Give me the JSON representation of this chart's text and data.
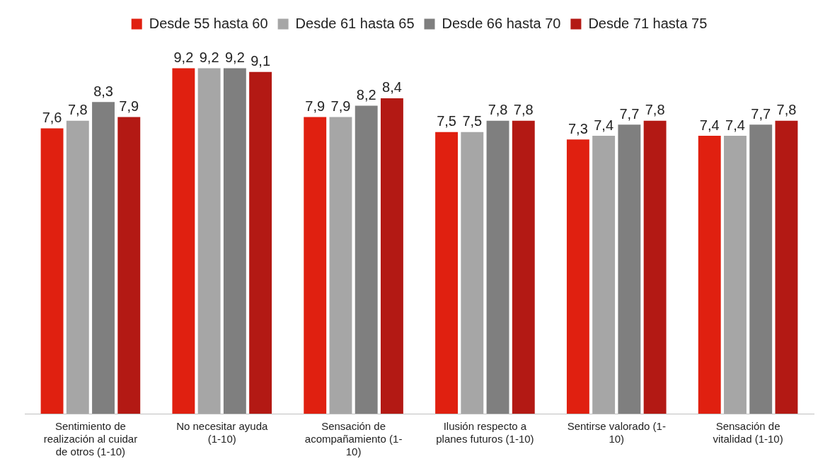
{
  "chart_data": {
    "type": "bar",
    "categories": [
      "Sentimiento de realización al cuidar de otros (1-10)",
      "No necesitar ayuda (1-10)",
      "Sensación de acompañamiento (1-10)",
      "Ilusión respecto a planes futuros (1-10)",
      "Sentirse valorado (1-10)",
      "Sensación de vitalidad (1-10)"
    ],
    "series": [
      {
        "name": "Desde 55 hasta 60",
        "color": "#e02010",
        "values": [
          7.6,
          9.2,
          7.9,
          7.5,
          7.3,
          7.4
        ],
        "value_labels": [
          "7,6",
          "9,2",
          "7,9",
          "7,5",
          "7,3",
          "7,4"
        ]
      },
      {
        "name": "Desde 61 hasta 65",
        "color": "#a6a6a6",
        "values": [
          7.8,
          9.2,
          7.9,
          7.5,
          7.4,
          7.4
        ],
        "value_labels": [
          "7,8",
          "9,2",
          "7,9",
          "7,5",
          "7,4",
          "7,4"
        ]
      },
      {
        "name": "Desde 66 hasta 70",
        "color": "#7f7f7f",
        "values": [
          8.3,
          9.2,
          8.2,
          7.8,
          7.7,
          7.7
        ],
        "value_labels": [
          "8,3",
          "9,2",
          "8,2",
          "7,8",
          "7,7",
          "7,7"
        ]
      },
      {
        "name": "Desde 71 hasta 75",
        "color": "#b31914",
        "values": [
          7.9,
          9.1,
          8.4,
          7.8,
          7.8,
          7.8
        ],
        "value_labels": [
          "7,9",
          "9,1",
          "8,4",
          "7,8",
          "7,8",
          "7,8"
        ]
      }
    ],
    "tick_labels": "x",
    "legend": "top"
  }
}
